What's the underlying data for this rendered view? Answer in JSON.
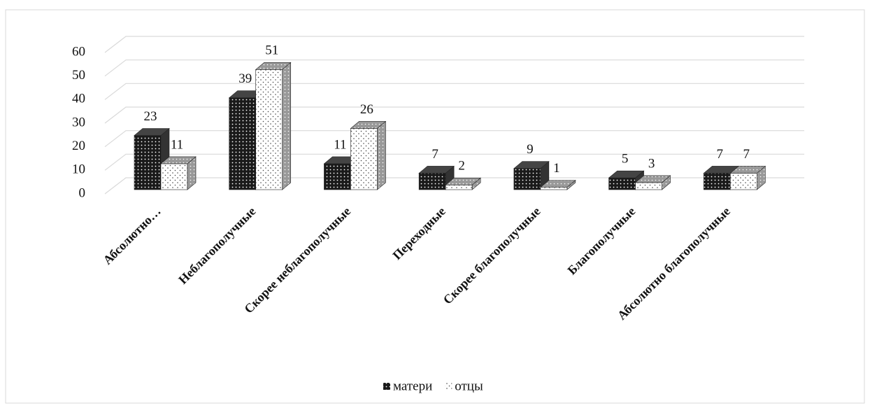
{
  "chart_data": {
    "type": "bar3d",
    "categories": [
      "Абсолютно…",
      "Неблагополучные",
      "Скорее неблагополучные",
      "Переходные",
      "Скорее благополучные",
      "Благополучные",
      "Абсолютно благополучные"
    ],
    "series": [
      {
        "name": "матери",
        "color": "#1a1a1a",
        "values": [
          23,
          39,
          11,
          7,
          9,
          5,
          7
        ]
      },
      {
        "name": "отцы",
        "color": "#ffffff",
        "values": [
          11,
          51,
          26,
          2,
          1,
          3,
          7
        ]
      }
    ],
    "ylim": [
      0,
      60
    ],
    "yticks": [
      0,
      10,
      20,
      30,
      40,
      50,
      60
    ],
    "grid": true,
    "legend": "bottom"
  }
}
